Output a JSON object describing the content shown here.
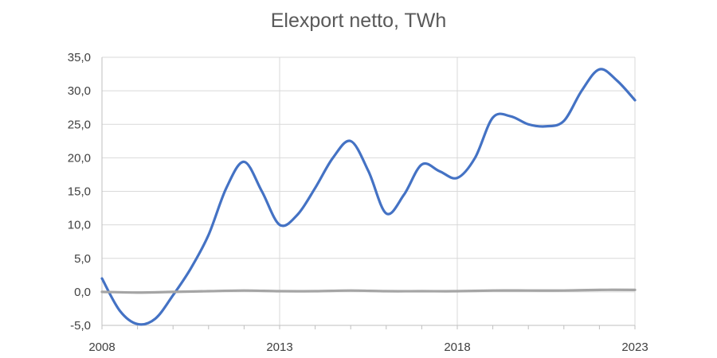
{
  "chart_data": {
    "type": "line",
    "title": "Elexport netto, TWh",
    "xlabel": "",
    "ylabel": "",
    "xlim": [
      2008,
      2023
    ],
    "ylim": [
      -5,
      35
    ],
    "x_ticks": [
      2008,
      2013,
      2018,
      2023
    ],
    "x_tick_labels": [
      "2008",
      "2013",
      "2018",
      "2023"
    ],
    "y_ticks": [
      -5,
      0,
      5,
      10,
      15,
      20,
      25,
      30,
      35
    ],
    "y_tick_labels": [
      "-5,0",
      "0,0",
      "5,0",
      "10,0",
      "15,0",
      "20,0",
      "25,0",
      "30,0",
      "35,0"
    ],
    "grid": true,
    "legend": "none",
    "series": [
      {
        "color": "#4472c4",
        "x": [
          2008,
          2008.5,
          2009,
          2009.5,
          2010,
          2010.5,
          2011,
          2011.5,
          2012,
          2012.5,
          2013,
          2013.5,
          2014,
          2014.5,
          2015,
          2015.5,
          2016,
          2016.5,
          2017,
          2017.5,
          2018,
          2018.5,
          2019,
          2019.5,
          2020,
          2020.5,
          2021,
          2021.5,
          2022,
          2022.5,
          2023
        ],
        "y": [
          2.0,
          -2.8,
          -4.8,
          -4.0,
          -0.5,
          3.5,
          8.5,
          15.5,
          19.4,
          15.0,
          10.0,
          11.5,
          15.5,
          20.0,
          22.5,
          18.0,
          11.7,
          14.5,
          19.0,
          18.0,
          17.0,
          20.0,
          26.0,
          26.2,
          25.0,
          24.7,
          25.5,
          30.0,
          33.2,
          31.5,
          28.6
        ]
      },
      {
        "color": "#a5a5a5",
        "x": [
          2008,
          2009,
          2010,
          2011,
          2012,
          2013,
          2014,
          2015,
          2016,
          2017,
          2018,
          2019,
          2020,
          2021,
          2022,
          2023
        ],
        "y": [
          0.0,
          -0.1,
          0.0,
          0.1,
          0.2,
          0.1,
          0.1,
          0.2,
          0.1,
          0.1,
          0.1,
          0.2,
          0.2,
          0.2,
          0.3,
          0.3
        ]
      }
    ]
  }
}
